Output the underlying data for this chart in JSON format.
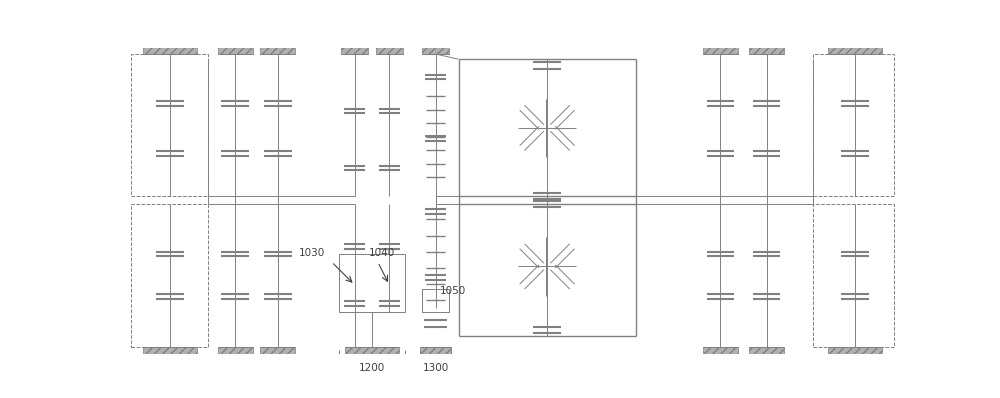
{
  "bg_color": "#ffffff",
  "line_color": "#808080",
  "text_color": "#404040",
  "fig_width": 10.0,
  "fig_height": 3.98,
  "dpi": 100
}
